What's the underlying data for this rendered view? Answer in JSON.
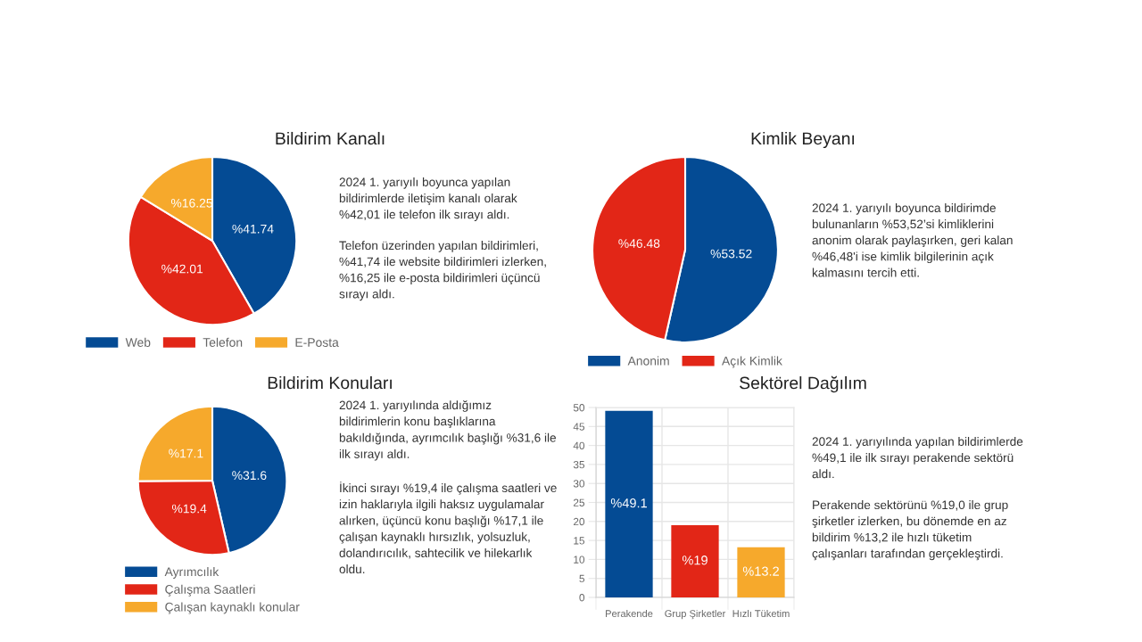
{
  "chart_data": [
    {
      "type": "pie",
      "title": "Bildirim Kanalı",
      "categories": [
        "Web",
        "Telefon",
        "E-Posta"
      ],
      "values": [
        41.74,
        42.01,
        16.25
      ],
      "colors": [
        "#044b94",
        "#e22617",
        "#f6a92c"
      ],
      "value_labels": [
        "%41.74",
        "%42.01",
        "%16.25"
      ],
      "legend": "bottom",
      "annotations": [
        "2024 1. yarıyılı boyunca yapılan\nbildirimlerde iletişim kanalı olarak\n%42,01 ile telefon ilk sırayı aldı.",
        "Telefon üzerinden yapılan bildirimleri,\n%41,74 ile website bildirimleri izlerken,\n%16,25 ile e-posta bildirimleri üçüncü\nsırayı aldı."
      ]
    },
    {
      "type": "pie",
      "title": "Kimlik Beyanı",
      "categories": [
        "Anonim",
        "Açık Kimlik"
      ],
      "values": [
        53.52,
        46.48
      ],
      "colors": [
        "#044b94",
        "#e22617"
      ],
      "value_labels": [
        "%53.52",
        "%46.48"
      ],
      "legend": "bottom",
      "annotations": [
        "2024 1. yarıyılı boyunca bildirimde\nbulunanların %53,52’si kimliklerini\nanonim olarak paylaşırken, geri kalan\n%46,48'i ise kimlik bilgilerinin açık\nkalmasını tercih etti."
      ]
    },
    {
      "type": "pie",
      "title": "Bildirim Konuları",
      "categories": [
        "Ayrımcılık",
        "Çalışma Saatleri",
        "Çalışan kaynaklı konular"
      ],
      "values": [
        31.6,
        19.4,
        17.1
      ],
      "colors": [
        "#044b94",
        "#e22617",
        "#f6a92c"
      ],
      "value_labels": [
        "%31.6",
        "%19.4",
        "%17.1"
      ],
      "legend": "bottom",
      "annotations": [
        "2024 1. yarıyılında aldığımız\nbildirimlerin konu başlıklarına\nbakıldığında, ayrımcılık başlığı %31,6 ile\nilk sırayı aldı.",
        "İkinci sırayı %19,4 ile çalışma saatleri ve\nizin haklarıyla ilgili haksız uygulamalar\nalırken, üçüncü konu başlığı %17,1 ile\nçalışan kaynaklı hırsızlık, yolsuzluk,\ndolandırıcılık, sahtecilik ve hilekarlık\noldu."
      ]
    },
    {
      "type": "bar",
      "title": "Sektörel Dağılım",
      "categories": [
        "Perakende",
        "Grup Şirketler",
        "Hızlı Tüketim"
      ],
      "values": [
        49.1,
        19,
        13.2
      ],
      "colors": [
        "#044b94",
        "#e22617",
        "#f6a92c"
      ],
      "value_labels": [
        "%49.1",
        "%19",
        "%13.2"
      ],
      "ylim": [
        0,
        50
      ],
      "yticks": [
        0,
        5,
        10,
        15,
        20,
        25,
        30,
        35,
        40,
        45,
        50
      ],
      "grid": true,
      "annotations": [
        "2024 1. yarıyılında yapılan bildirimlerde\n%49,1 ile ilk sırayı perakende sektörü\naldı.",
        "Perakende sektörünü %19,0 ile grup\nşirketler izlerken, bu dönemde en az\nbildirim %13,2 ile hızlı tüketim\nçalışanları tarafından gerçekleştirdi."
      ]
    }
  ]
}
